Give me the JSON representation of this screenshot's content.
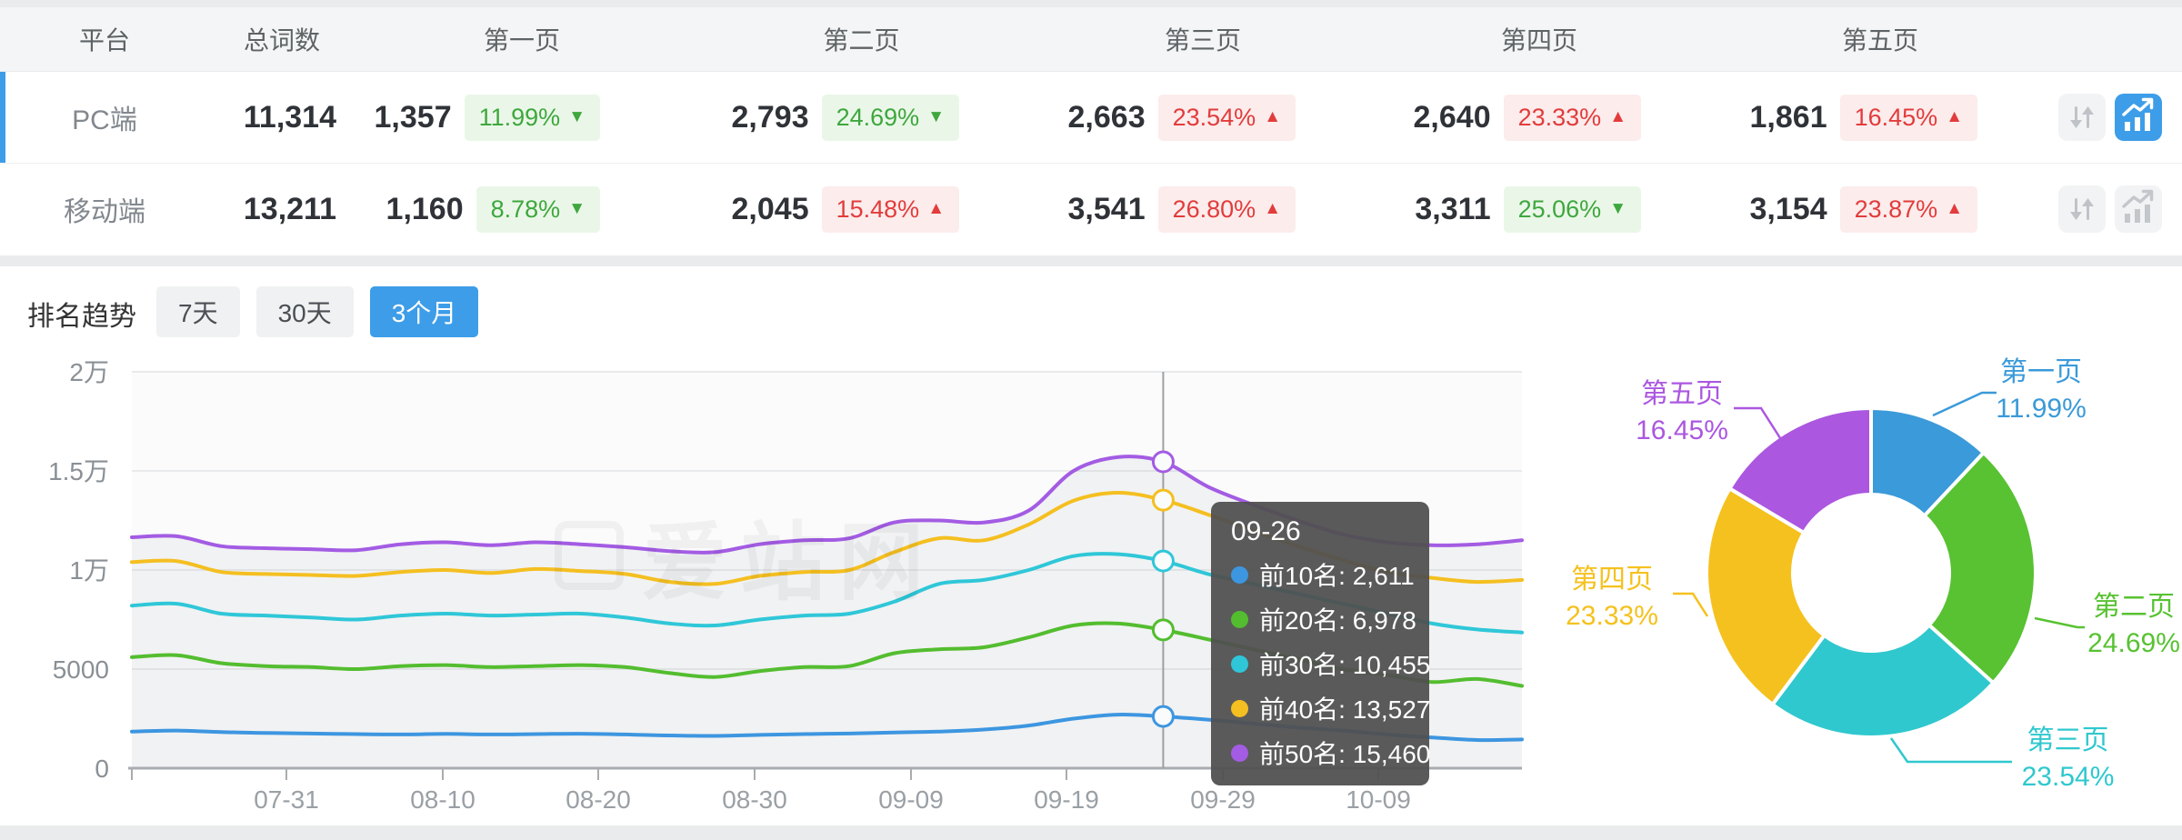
{
  "table": {
    "headers": [
      "平台",
      "总词数",
      "第一页",
      "第二页",
      "第三页",
      "第四页",
      "第五页"
    ],
    "rows": [
      {
        "platform": "PC端",
        "total": "11,314",
        "selected": true,
        "pages": [
          {
            "count": "1,357",
            "pct": "11.99%",
            "trend": "down"
          },
          {
            "count": "2,793",
            "pct": "24.69%",
            "trend": "down"
          },
          {
            "count": "2,663",
            "pct": "23.54%",
            "trend": "up"
          },
          {
            "count": "2,640",
            "pct": "23.33%",
            "trend": "up"
          },
          {
            "count": "1,861",
            "pct": "16.45%",
            "trend": "up"
          }
        ]
      },
      {
        "platform": "移动端",
        "total": "13,211",
        "selected": false,
        "pages": [
          {
            "count": "1,160",
            "pct": "8.78%",
            "trend": "down"
          },
          {
            "count": "2,045",
            "pct": "15.48%",
            "trend": "up"
          },
          {
            "count": "3,541",
            "pct": "26.80%",
            "trend": "up"
          },
          {
            "count": "3,311",
            "pct": "25.06%",
            "trend": "down"
          },
          {
            "count": "3,154",
            "pct": "23.87%",
            "trend": "up"
          }
        ]
      }
    ]
  },
  "trend_section": {
    "title": "排名趋势",
    "tabs": [
      {
        "label": "7天",
        "active": false
      },
      {
        "label": "30天",
        "active": false
      },
      {
        "label": "3个月",
        "active": true
      }
    ],
    "watermark": "爱站网"
  },
  "icons": {
    "rise": "▲",
    "fall": "▼"
  },
  "colors": {
    "accent_blue": "#3D9DE8",
    "rise_red": "#E23C3C",
    "fall_green": "#3EA73E",
    "header_bg": "#F4F5F7"
  },
  "chart_data": [
    {
      "type": "line",
      "title": "排名趋势 (3个月)",
      "x_ticks": [
        "07-31",
        "08-10",
        "08-20",
        "08-30",
        "09-09",
        "09-19",
        "09-29",
        "10-09"
      ],
      "y_ticks": [
        "2万",
        "1.5万",
        "1万",
        "5000",
        "0"
      ],
      "ylim": [
        0,
        20000
      ],
      "grid": true,
      "series": [
        {
          "name": "前10名",
          "color": "#3D96E0",
          "values": [
            1850,
            1900,
            1820,
            1780,
            1750,
            1720,
            1700,
            1730,
            1700,
            1720,
            1740,
            1700,
            1650,
            1630,
            1680,
            1720,
            1750,
            1800,
            1850,
            1950,
            2150,
            2500,
            2700,
            2611,
            2450,
            2250,
            2050,
            1900,
            1700,
            1550,
            1420,
            1450
          ]
        },
        {
          "name": "前20名",
          "color": "#53BD2F",
          "values": [
            5600,
            5700,
            5300,
            5150,
            5100,
            5000,
            5150,
            5200,
            5100,
            5150,
            5200,
            5100,
            4800,
            4600,
            4900,
            5100,
            5150,
            5800,
            6000,
            6100,
            6600,
            7200,
            7300,
            6978,
            6500,
            6000,
            5500,
            5000,
            4700,
            4350,
            4500,
            4150
          ]
        },
        {
          "name": "前30名",
          "color": "#2FC7D8",
          "values": [
            8200,
            8300,
            7800,
            7700,
            7600,
            7500,
            7700,
            7800,
            7700,
            7750,
            7800,
            7600,
            7300,
            7200,
            7500,
            7700,
            7800,
            8400,
            9300,
            9500,
            10000,
            10700,
            10800,
            10455,
            9800,
            9300,
            8800,
            8300,
            7800,
            7300,
            7000,
            6850
          ]
        },
        {
          "name": "前40名",
          "color": "#F4BF20",
          "values": [
            10400,
            10450,
            9900,
            9800,
            9750,
            9700,
            9900,
            10000,
            9850,
            10050,
            9950,
            9800,
            9400,
            9300,
            9700,
            9900,
            10000,
            10900,
            11600,
            11500,
            12300,
            13500,
            13900,
            13527,
            12800,
            12000,
            11200,
            10500,
            9900,
            9600,
            9400,
            9500
          ]
        },
        {
          "name": "前50名",
          "color": "#A35CE3",
          "values": [
            11650,
            11700,
            11200,
            11100,
            11050,
            11000,
            11300,
            11400,
            11250,
            11400,
            11300,
            11150,
            10950,
            10900,
            11300,
            11500,
            11600,
            12400,
            12500,
            12400,
            13000,
            15000,
            15700,
            15460,
            14200,
            13300,
            12500,
            11800,
            11400,
            11250,
            11300,
            11500
          ]
        }
      ],
      "tooltip": {
        "date": "09-26",
        "index": 23,
        "entries": [
          {
            "name": "前10名",
            "value": "2,611"
          },
          {
            "name": "前20名",
            "value": "6,978"
          },
          {
            "name": "前30名",
            "value": "10,455"
          },
          {
            "name": "前40名",
            "value": "13,527"
          },
          {
            "name": "前50名",
            "value": "15,460"
          }
        ]
      }
    },
    {
      "type": "pie",
      "donut": true,
      "slices": [
        {
          "label": "第一页",
          "value": 11.99,
          "pct_label": "11.99%",
          "color": "#3B9AD9"
        },
        {
          "label": "第二页",
          "value": 24.69,
          "pct_label": "24.69%",
          "color": "#58C232"
        },
        {
          "label": "第三页",
          "value": 23.54,
          "pct_label": "23.54%",
          "color": "#2FC8CE"
        },
        {
          "label": "第四页",
          "value": 23.33,
          "pct_label": "23.33%",
          "color": "#F5C11E"
        },
        {
          "label": "第五页",
          "value": 16.45,
          "pct_label": "16.45%",
          "color": "#AB57E0"
        }
      ]
    }
  ]
}
